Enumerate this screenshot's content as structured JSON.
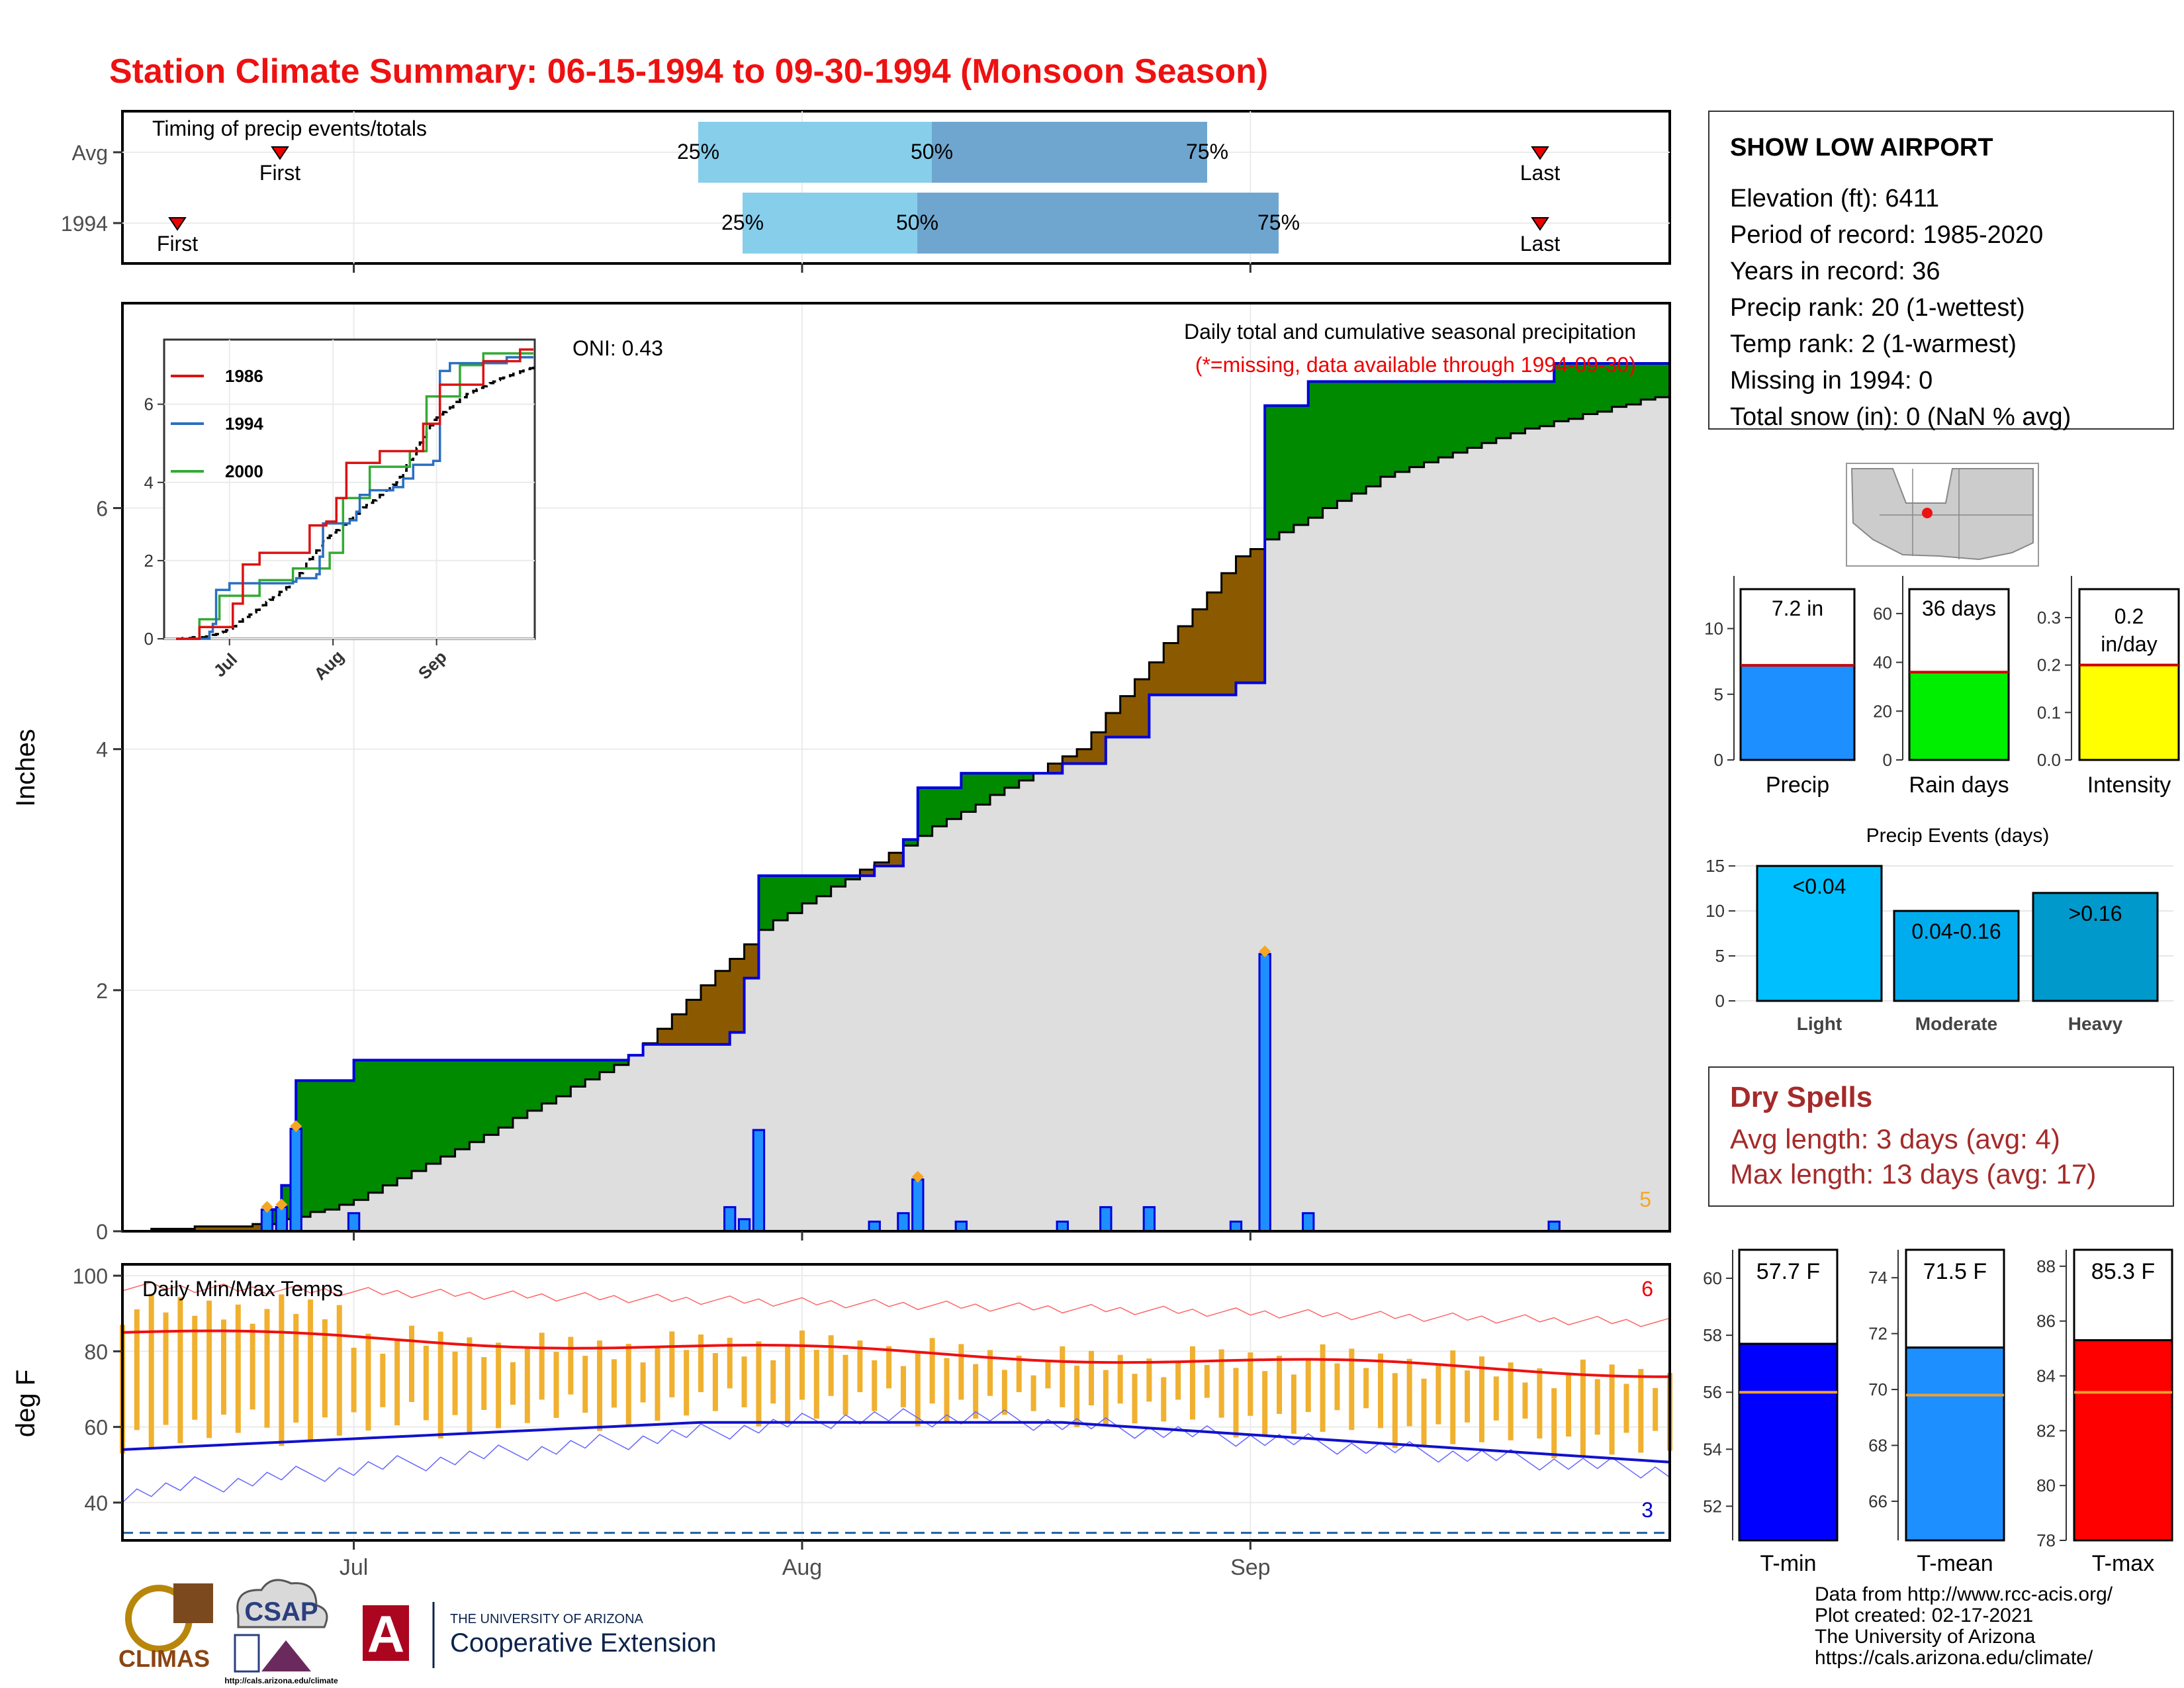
{
  "title": "Station Climate Summary: 06-15-1994 to 09-30-1994 (Monsoon Season)",
  "colors": {
    "title": "#ee1111",
    "green": "#008a00",
    "brown": "#8b5a00",
    "gray_fill": "#dedede",
    "blue_line": "#0000dd",
    "bar_blue": "#1e8fff",
    "orange": "#f5a623",
    "light_blue": "#87ceeb",
    "mid_blue": "#6fa6cf",
    "dry_red": "#a52a2a"
  },
  "timing": {
    "label": "Timing of precip events/totals",
    "rows": [
      {
        "name": "Avg",
        "first_label": "First",
        "last_label": "Last",
        "p25": "25%",
        "p50": "50%",
        "p75": "75%"
      },
      {
        "name": "1994",
        "first_label": "First",
        "last_label": "Last",
        "p25": "25%",
        "p50": "50%",
        "p75": "75%"
      }
    ]
  },
  "main": {
    "ylabel": "Inches",
    "note": "Daily total and cumulative seasonal precipitation",
    "missing_note": "(*=missing, data available through 1994-09-30)",
    "oni": "ONI: 0.43",
    "corner_count": "5",
    "y_ticks": [
      "0",
      "2",
      "4",
      "6"
    ],
    "x_ticks": [
      "Jul",
      "Aug",
      "Sep"
    ]
  },
  "inset": {
    "legend": [
      "1986",
      "1994",
      "2000"
    ],
    "y_ticks": [
      "0",
      "2",
      "4",
      "6"
    ],
    "x_ticks": [
      "Jul",
      "Aug",
      "Sep"
    ]
  },
  "temps": {
    "label": "Daily Min/Max Temps",
    "ylabel": "deg F",
    "y_ticks": [
      "40",
      "60",
      "80",
      "100"
    ],
    "count_high": "6",
    "count_low": "3"
  },
  "station": {
    "name": "SHOW LOW AIRPORT",
    "lines": [
      "Elevation (ft): 6411",
      "Period of record: 1985-2020",
      "Years in record: 36",
      "Precip rank: 20 (1-wettest)",
      "Temp rank: 2 (1-warmest)",
      "Missing in 1994: 0",
      "Total snow (in): 0 (NaN % avg)"
    ]
  },
  "summary_bars": [
    {
      "label": "Precip",
      "value_text": "7.2 in",
      "value": 7.2,
      "avg": 7.2,
      "ymax": 13,
      "ticks": [
        "0",
        "5",
        "10"
      ],
      "tick_vals": [
        0,
        5,
        10
      ],
      "color": "#1e8fff"
    },
    {
      "label": "Rain days",
      "value_text": "36 days",
      "value": 36,
      "avg": 36,
      "ymax": 70,
      "ticks": [
        "0",
        "20",
        "40",
        "60"
      ],
      "tick_vals": [
        0,
        20,
        40,
        60
      ],
      "color": "#00ee00"
    },
    {
      "label": "Intensity",
      "value_text": "0.2\nin/day",
      "value": 0.2,
      "avg": 0.2,
      "ymax": 0.36,
      "ticks": [
        "0.0",
        "0.1",
        "0.2",
        "0.3"
      ],
      "tick_vals": [
        0,
        0.1,
        0.2,
        0.3
      ],
      "color": "#ffff00"
    }
  ],
  "events": {
    "title": "Precip Events (days)",
    "y_ticks": [
      "0",
      "5",
      "10",
      "15"
    ],
    "bars": [
      {
        "name": "Light",
        "value": 15,
        "text": "<0.04",
        "color": "#00bfff"
      },
      {
        "name": "Moderate",
        "value": 10,
        "text": "0.04-0.16",
        "color": "#00aced"
      },
      {
        "name": "Heavy",
        "value": 12,
        "text": ">0.16",
        "color": "#0099cc"
      }
    ]
  },
  "dry_spells": {
    "title": "Dry Spells",
    "avg": "Avg length: 3 days (avg: 4)",
    "max": "Max length: 13 days (avg: 17)"
  },
  "temp_bars": [
    {
      "label": "T-min",
      "value_text": "57.7 F",
      "value": 57.7,
      "avg": 56.0,
      "ymin": 50.8,
      "ymax": 61.0,
      "ticks": [
        "52",
        "54",
        "56",
        "58",
        "60"
      ],
      "tick_vals": [
        52,
        54,
        56,
        58,
        60
      ],
      "color": "#0000ff"
    },
    {
      "label": "T-mean",
      "value_text": "71.5 F",
      "value": 71.5,
      "avg": 69.8,
      "ymin": 64.6,
      "ymax": 75.0,
      "ticks": [
        "66",
        "68",
        "70",
        "72",
        "74"
      ],
      "tick_vals": [
        66,
        68,
        70,
        72,
        74
      ],
      "color": "#1e8fff"
    },
    {
      "label": "T-max",
      "value_text": "85.3 F",
      "value": 85.3,
      "avg": 83.4,
      "ymin": 78.0,
      "ymax": 88.6,
      "ticks": [
        "78",
        "80",
        "82",
        "84",
        "86",
        "88"
      ],
      "tick_vals": [
        78,
        80,
        82,
        84,
        86,
        88
      ],
      "color": "#ff0000"
    }
  ],
  "footer": {
    "lines": [
      "Data from http://www.rcc-acis.org/",
      "Plot created: 02-17-2021",
      "The University of Arizona",
      "https://cals.arizona.edu/climate/"
    ],
    "logo_climas": "CLIMAS",
    "logo_csap": "CSAP",
    "logo_csap_url": "http://cals.arizona.edu/climate",
    "logo_a": "A",
    "ua_small": "THE UNIVERSITY OF ARIZONA",
    "ua_big": "Cooperative Extension"
  },
  "chart_data": {
    "type": "area",
    "x_start": "1994-06-15",
    "x_end": "1994-09-30",
    "ylim": [
      0,
      7.7
    ],
    "ylabel": "Inches",
    "daily_precip": [
      {
        "date": "1994-06-25",
        "value": 0.18
      },
      {
        "date": "1994-06-26",
        "value": 0.2
      },
      {
        "date": "1994-06-27",
        "value": 0.85
      },
      {
        "date": "1994-07-01",
        "value": 0.15
      },
      {
        "date": "1994-07-27",
        "value": 0.2
      },
      {
        "date": "1994-07-28",
        "value": 0.1
      },
      {
        "date": "1994-07-29",
        "value": 0.84
      },
      {
        "date": "1994-08-06",
        "value": 0.08
      },
      {
        "date": "1994-08-08",
        "value": 0.15
      },
      {
        "date": "1994-08-09",
        "value": 0.43
      },
      {
        "date": "1994-08-12",
        "value": 0.08
      },
      {
        "date": "1994-08-19",
        "value": 0.08
      },
      {
        "date": "1994-08-22",
        "value": 0.2
      },
      {
        "date": "1994-08-25",
        "value": 0.2
      },
      {
        "date": "1994-08-31",
        "value": 0.08
      },
      {
        "date": "1994-09-02",
        "value": 2.3
      },
      {
        "date": "1994-09-05",
        "value": 0.15
      },
      {
        "date": "1994-09-22",
        "value": 0.08
      }
    ],
    "cumulative_1994": [
      {
        "date": "1994-06-15",
        "value": 0
      },
      {
        "date": "1994-06-25",
        "value": 0.18
      },
      {
        "date": "1994-06-26",
        "value": 0.38
      },
      {
        "date": "1994-06-27",
        "value": 1.25
      },
      {
        "date": "1994-07-01",
        "value": 1.42
      },
      {
        "date": "1994-07-20",
        "value": 1.46
      },
      {
        "date": "1994-07-21",
        "value": 1.55
      },
      {
        "date": "1994-07-27",
        "value": 1.65
      },
      {
        "date": "1994-07-28",
        "value": 2.1
      },
      {
        "date": "1994-07-29",
        "value": 2.95
      },
      {
        "date": "1994-08-06",
        "value": 3.03
      },
      {
        "date": "1994-08-08",
        "value": 3.25
      },
      {
        "date": "1994-08-09",
        "value": 3.68
      },
      {
        "date": "1994-08-12",
        "value": 3.8
      },
      {
        "date": "1994-08-19",
        "value": 3.88
      },
      {
        "date": "1994-08-22",
        "value": 4.1
      },
      {
        "date": "1994-08-25",
        "value": 4.45
      },
      {
        "date": "1994-08-31",
        "value": 4.55
      },
      {
        "date": "1994-09-02",
        "value": 6.85
      },
      {
        "date": "1994-09-05",
        "value": 7.05
      },
      {
        "date": "1994-09-22",
        "value": 7.2
      },
      {
        "date": "1994-09-30",
        "value": 7.2
      }
    ],
    "cumulative_avg": [
      {
        "date": "1994-06-15",
        "value": 0
      },
      {
        "date": "1994-06-25",
        "value": 0.06
      },
      {
        "date": "1994-07-01",
        "value": 0.25
      },
      {
        "date": "1994-07-10",
        "value": 0.8
      },
      {
        "date": "1994-07-20",
        "value": 1.45
      },
      {
        "date": "1994-07-29",
        "value": 2.5
      },
      {
        "date": "1994-08-10",
        "value": 3.35
      },
      {
        "date": "1994-08-20",
        "value": 4.0
      },
      {
        "date": "1994-08-31",
        "value": 5.6
      },
      {
        "date": "1994-09-10",
        "value": 6.25
      },
      {
        "date": "1994-09-20",
        "value": 6.65
      },
      {
        "date": "1994-09-30",
        "value": 6.95
      }
    ]
  }
}
